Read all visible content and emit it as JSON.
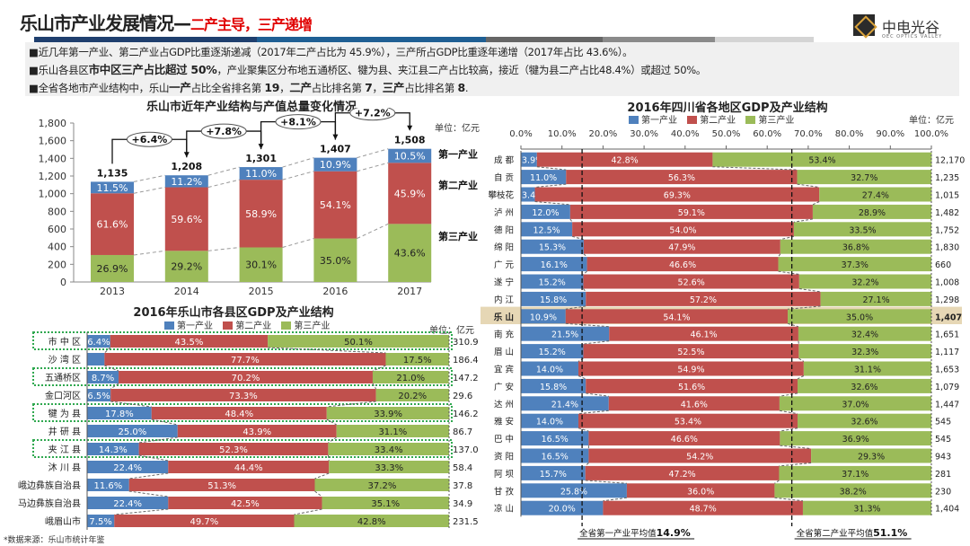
{
  "header": {
    "title_main": "乐山市产业发展情况—",
    "title_sub": "二产主导，三产递增",
    "logo_cn": "中电光谷",
    "logo_en": "OEC OPTICS VALLEY"
  },
  "bullets": [
    {
      "parts": [
        {
          "t": "■近几年第一产业、第二产业占GDP比重逐渐递减（2017年二产占比为 45.9%），三产所占GDP比重逐年递增（2017年占比 43.6%）。",
          "b": false
        }
      ]
    },
    {
      "parts": [
        {
          "t": "■乐山各县区",
          "b": false
        },
        {
          "t": "市中区三产占比超过 50%",
          "b": true
        },
        {
          "t": "，产业聚集区分布地五通桥区、犍为县、夹江县二产占比较高，接近（犍为县二产占比48.4%）或超过 50%。",
          "b": false
        }
      ]
    },
    {
      "parts": [
        {
          "t": "■全省各地市产业结构中，乐山",
          "b": false
        },
        {
          "t": "一产",
          "b": true
        },
        {
          "t": "占比全省排名第 ",
          "b": false
        },
        {
          "t": "19",
          "b": true
        },
        {
          "t": "，",
          "b": false
        },
        {
          "t": "二产",
          "b": true
        },
        {
          "t": "占比排名第 ",
          "b": false
        },
        {
          "t": "7",
          "b": true
        },
        {
          "t": "，",
          "b": false
        },
        {
          "t": "三产",
          "b": true
        },
        {
          "t": "占比排名第 ",
          "b": false
        },
        {
          "t": "8",
          "b": true
        },
        {
          "t": ".",
          "b": false
        }
      ]
    }
  ],
  "colors": {
    "primary": "#4f81bd",
    "secondary": "#c0504d",
    "tertiary": "#9bbb59",
    "highlight": "#e6d7b5",
    "outline": "#2fa84f"
  },
  "legend": [
    "第一产业",
    "第二产业",
    "第三产业"
  ],
  "source": "*数据来源：乐山市统计年鉴",
  "chart_data": [
    {
      "type": "bar",
      "title": "乐山市近年产业结构与产值总量变化情况",
      "unit": "单位：亿元",
      "categories": [
        "2013",
        "2014",
        "2015",
        "2016",
        "2017"
      ],
      "totals": [
        1135,
        1208,
        1301,
        1407,
        1508
      ],
      "total_labels": [
        "1,135",
        "1,208",
        "1,301",
        "1,407",
        "1,508"
      ],
      "growth": [
        "+6.4%",
        "+7.8%",
        "+8.1%",
        "+7.2%"
      ],
      "series": [
        {
          "name": "第一产业",
          "values": [
            11.5,
            11.2,
            11.0,
            10.9,
            10.5
          ]
        },
        {
          "name": "第二产业",
          "values": [
            61.6,
            59.6,
            58.9,
            54.1,
            45.9
          ]
        },
        {
          "name": "第三产业",
          "values": [
            26.9,
            29.2,
            30.1,
            35.0,
            43.6
          ]
        }
      ],
      "ylim": [
        0,
        1800
      ],
      "yticks": [
        0,
        200,
        400,
        600,
        800,
        1000,
        1200,
        1400,
        1600,
        1800
      ],
      "ytick_labels": [
        "0",
        "200",
        "400",
        "600",
        "800",
        "1,000",
        "1,200",
        "1,400",
        "1,600",
        "1,800"
      ]
    },
    {
      "type": "bar",
      "title": "2016年乐山市各县区GDP及产业结构",
      "unit": "单位：亿元",
      "categories": [
        "市 中 区",
        "沙 湾 区",
        "五通桥区",
        "金口河区",
        "犍 为 县",
        "井 研 县",
        "夹 江 县",
        "沐 川 县",
        "峨边彝族自治县",
        "马边彝族自治县",
        "峨眉山市"
      ],
      "highlighted": [
        0,
        2,
        4,
        6
      ],
      "series": [
        {
          "name": "第一产业",
          "values": [
            6.4,
            4.8,
            8.7,
            6.5,
            17.8,
            25.0,
            14.3,
            22.4,
            11.6,
            22.4,
            7.5
          ],
          "labels": [
            "6.4%",
            "",
            "8.7%",
            "6.5%",
            "17.8%",
            "25.0%",
            "14.3%",
            "22.4%",
            "11.6%",
            "22.4%",
            "7.5%"
          ]
        },
        {
          "name": "第二产业",
          "values": [
            43.5,
            77.7,
            70.2,
            73.3,
            48.4,
            43.9,
            52.3,
            44.4,
            51.3,
            42.5,
            49.7
          ]
        },
        {
          "name": "第三产业",
          "values": [
            50.1,
            17.5,
            21.0,
            20.2,
            33.9,
            31.1,
            33.4,
            33.3,
            37.2,
            35.1,
            42.8
          ]
        }
      ],
      "gdp": [
        "310.9",
        "186.4",
        "147.2",
        "29.6",
        "146.2",
        "86.7",
        "137.0",
        "58.4",
        "37.8",
        "34.9",
        "231.5"
      ]
    },
    {
      "type": "bar",
      "title": "2016年四川省各地区GDP及产业结构",
      "unit": "单位：亿元",
      "xticks": [
        "0.0%",
        "10.0%",
        "20.0%",
        "30.0%",
        "40.0%",
        "50.0%",
        "60.0%",
        "70.0%",
        "80.0%",
        "90.0%",
        "100.0%"
      ],
      "categories": [
        "成 都",
        "自 贡",
        "攀枝花",
        "泸 州",
        "德 阳",
        "绵 阳",
        "广 元",
        "遂 宁",
        "内 江",
        "乐 山",
        "南 充",
        "眉 山",
        "宜 宾",
        "广 安",
        "达 州",
        "雅 安",
        "巴 中",
        "资 阳",
        "阿 坝",
        "甘 孜",
        "凉 山"
      ],
      "highlighted": [
        9
      ],
      "series": [
        {
          "name": "第一产业",
          "values": [
            3.9,
            11.0,
            3.4,
            12.0,
            12.5,
            15.3,
            16.1,
            15.2,
            15.8,
            10.9,
            21.5,
            15.2,
            14.0,
            15.8,
            21.4,
            14.0,
            16.5,
            16.5,
            15.7,
            25.8,
            20.0
          ]
        },
        {
          "name": "第二产业",
          "values": [
            42.8,
            56.3,
            69.3,
            59.1,
            54.0,
            47.9,
            46.6,
            52.6,
            57.2,
            54.1,
            46.1,
            52.5,
            54.9,
            51.6,
            41.6,
            53.4,
            46.6,
            54.2,
            47.2,
            36.0,
            48.7
          ]
        },
        {
          "name": "第三产业",
          "values": [
            53.4,
            32.7,
            27.4,
            28.9,
            33.5,
            36.8,
            37.3,
            32.2,
            27.1,
            35.0,
            32.4,
            32.3,
            31.1,
            32.6,
            37.0,
            32.6,
            36.9,
            29.3,
            37.1,
            38.2,
            31.3
          ]
        }
      ],
      "gdp": [
        "12,170",
        "1,235",
        "1,015",
        "1,482",
        "1,752",
        "1,830",
        "660",
        "1,008",
        "1,298",
        "1,407",
        "1,651",
        "1,117",
        "1,653",
        "1,079",
        "1,447",
        "545",
        "545",
        "943",
        "281",
        "230",
        "1,404"
      ],
      "averages": [
        {
          "label": "全省第一产业平均值",
          "value": 14.9,
          "value_label": "14.9%"
        },
        {
          "label": "全省第二产业平均值",
          "value": 51.1,
          "value_label": "51.1%"
        }
      ]
    }
  ]
}
